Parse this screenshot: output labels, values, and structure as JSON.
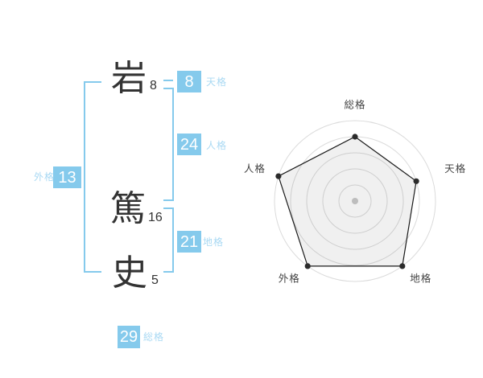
{
  "name": {
    "characters": [
      {
        "char": "岩",
        "strokes": "8"
      },
      {
        "char": "篤",
        "strokes": "16"
      },
      {
        "char": "史",
        "strokes": "5"
      }
    ],
    "kaku": [
      {
        "label": "天格",
        "value": "8"
      },
      {
        "label": "人格",
        "value": "24"
      },
      {
        "label": "地格",
        "value": "21"
      },
      {
        "label": "外格",
        "value": "13"
      },
      {
        "label": "総格",
        "value": "29"
      }
    ]
  },
  "colors": {
    "accent_blue": "#85CAEC",
    "label_blue": "#A9D9F3",
    "text_dark": "#333333",
    "chart_grid": "#DBDBDB",
    "chart_center_dot": "#C9C9C9",
    "chart_line": "#1A1A1A",
    "chart_dot": "#2B2B2B",
    "chart_fill": "rgba(0,0,0,0.06)",
    "chart_label": "#444444"
  },
  "chart_data": {
    "type": "radar",
    "categories": [
      "総格",
      "天格",
      "地格",
      "外格",
      "人格"
    ],
    "values": [
      4,
      4,
      5,
      5,
      5
    ],
    "max": 5,
    "rings": 5,
    "start_angle_deg": -90,
    "direction": "clockwise",
    "grid": "circular-rings-no-spokes",
    "legend_position": "none",
    "title": ""
  }
}
